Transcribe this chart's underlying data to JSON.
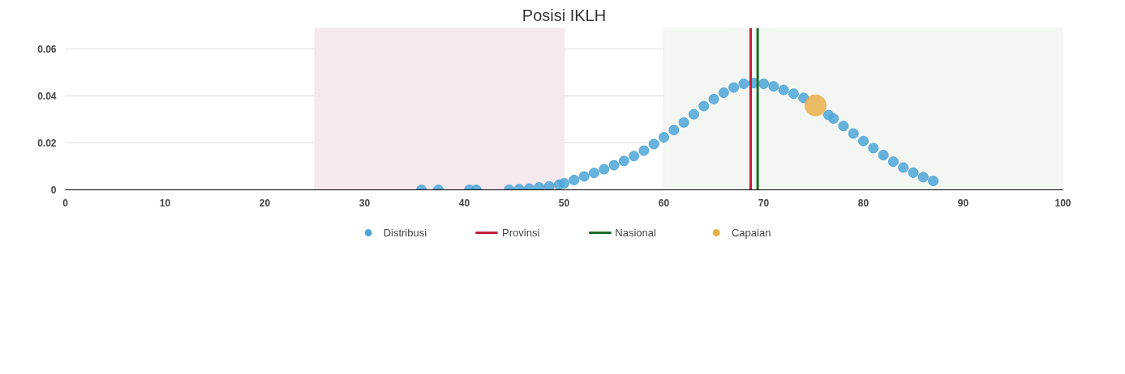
{
  "chart_data": {
    "type": "scatter",
    "title": "Posisi IKLH",
    "xlim": [
      0,
      100
    ],
    "xticks": [
      0,
      10,
      20,
      30,
      40,
      50,
      60,
      70,
      80,
      90,
      100
    ],
    "ylim": [
      0,
      0.069
    ],
    "yticks": [
      0,
      0.02,
      0.04,
      0.06
    ],
    "grid": "y",
    "legend": "bottom",
    "marker": "circle",
    "series": [
      {
        "name": "Distribusi",
        "color": "#4ea6d8",
        "x": [
          35.7,
          37.4,
          40.5,
          41.2,
          44.5,
          45.5,
          46.5,
          47.5,
          48.5,
          49.5,
          50,
          51,
          52,
          53,
          54,
          55,
          56,
          57,
          58,
          59,
          60,
          61,
          62,
          63,
          64,
          65,
          66,
          67,
          68,
          69,
          70,
          71,
          72,
          73,
          74,
          76.5,
          77,
          78,
          79,
          80,
          81,
          82,
          83,
          84,
          85,
          86,
          87
        ],
        "values": [
          0,
          0,
          0,
          0,
          0,
          0.0003,
          0.0005,
          0.001,
          0.0015,
          0.0022,
          0.0028,
          0.0042,
          0.0057,
          0.0072,
          0.0088,
          0.0105,
          0.0123,
          0.0144,
          0.0167,
          0.0195,
          0.0224,
          0.0255,
          0.0287,
          0.0322,
          0.0357,
          0.0387,
          0.0414,
          0.0436,
          0.0452,
          0.0455,
          0.0452,
          0.0441,
          0.0426,
          0.041,
          0.0392,
          0.0319,
          0.0304,
          0.0272,
          0.024,
          0.0208,
          0.0178,
          0.0148,
          0.012,
          0.0095,
          0.0073,
          0.0054,
          0.0038
        ]
      },
      {
        "name": "Capaian",
        "color": "#e8b04a",
        "x": [
          75.2
        ],
        "values": [
          0.036
        ]
      }
    ],
    "ref_lines": [
      {
        "axis": "x",
        "value": 68.7,
        "label": "Provinsi",
        "color": "#c0203a"
      },
      {
        "axis": "x",
        "value": 69.4,
        "label": "Nasional",
        "color": "#1a6b2a"
      }
    ],
    "bands": [
      {
        "axis": "x",
        "from": 25,
        "to": 50,
        "color": "#f6e9ee"
      },
      {
        "axis": "x",
        "from": 60,
        "to": 100,
        "color": "#f3f6f3"
      }
    ]
  }
}
